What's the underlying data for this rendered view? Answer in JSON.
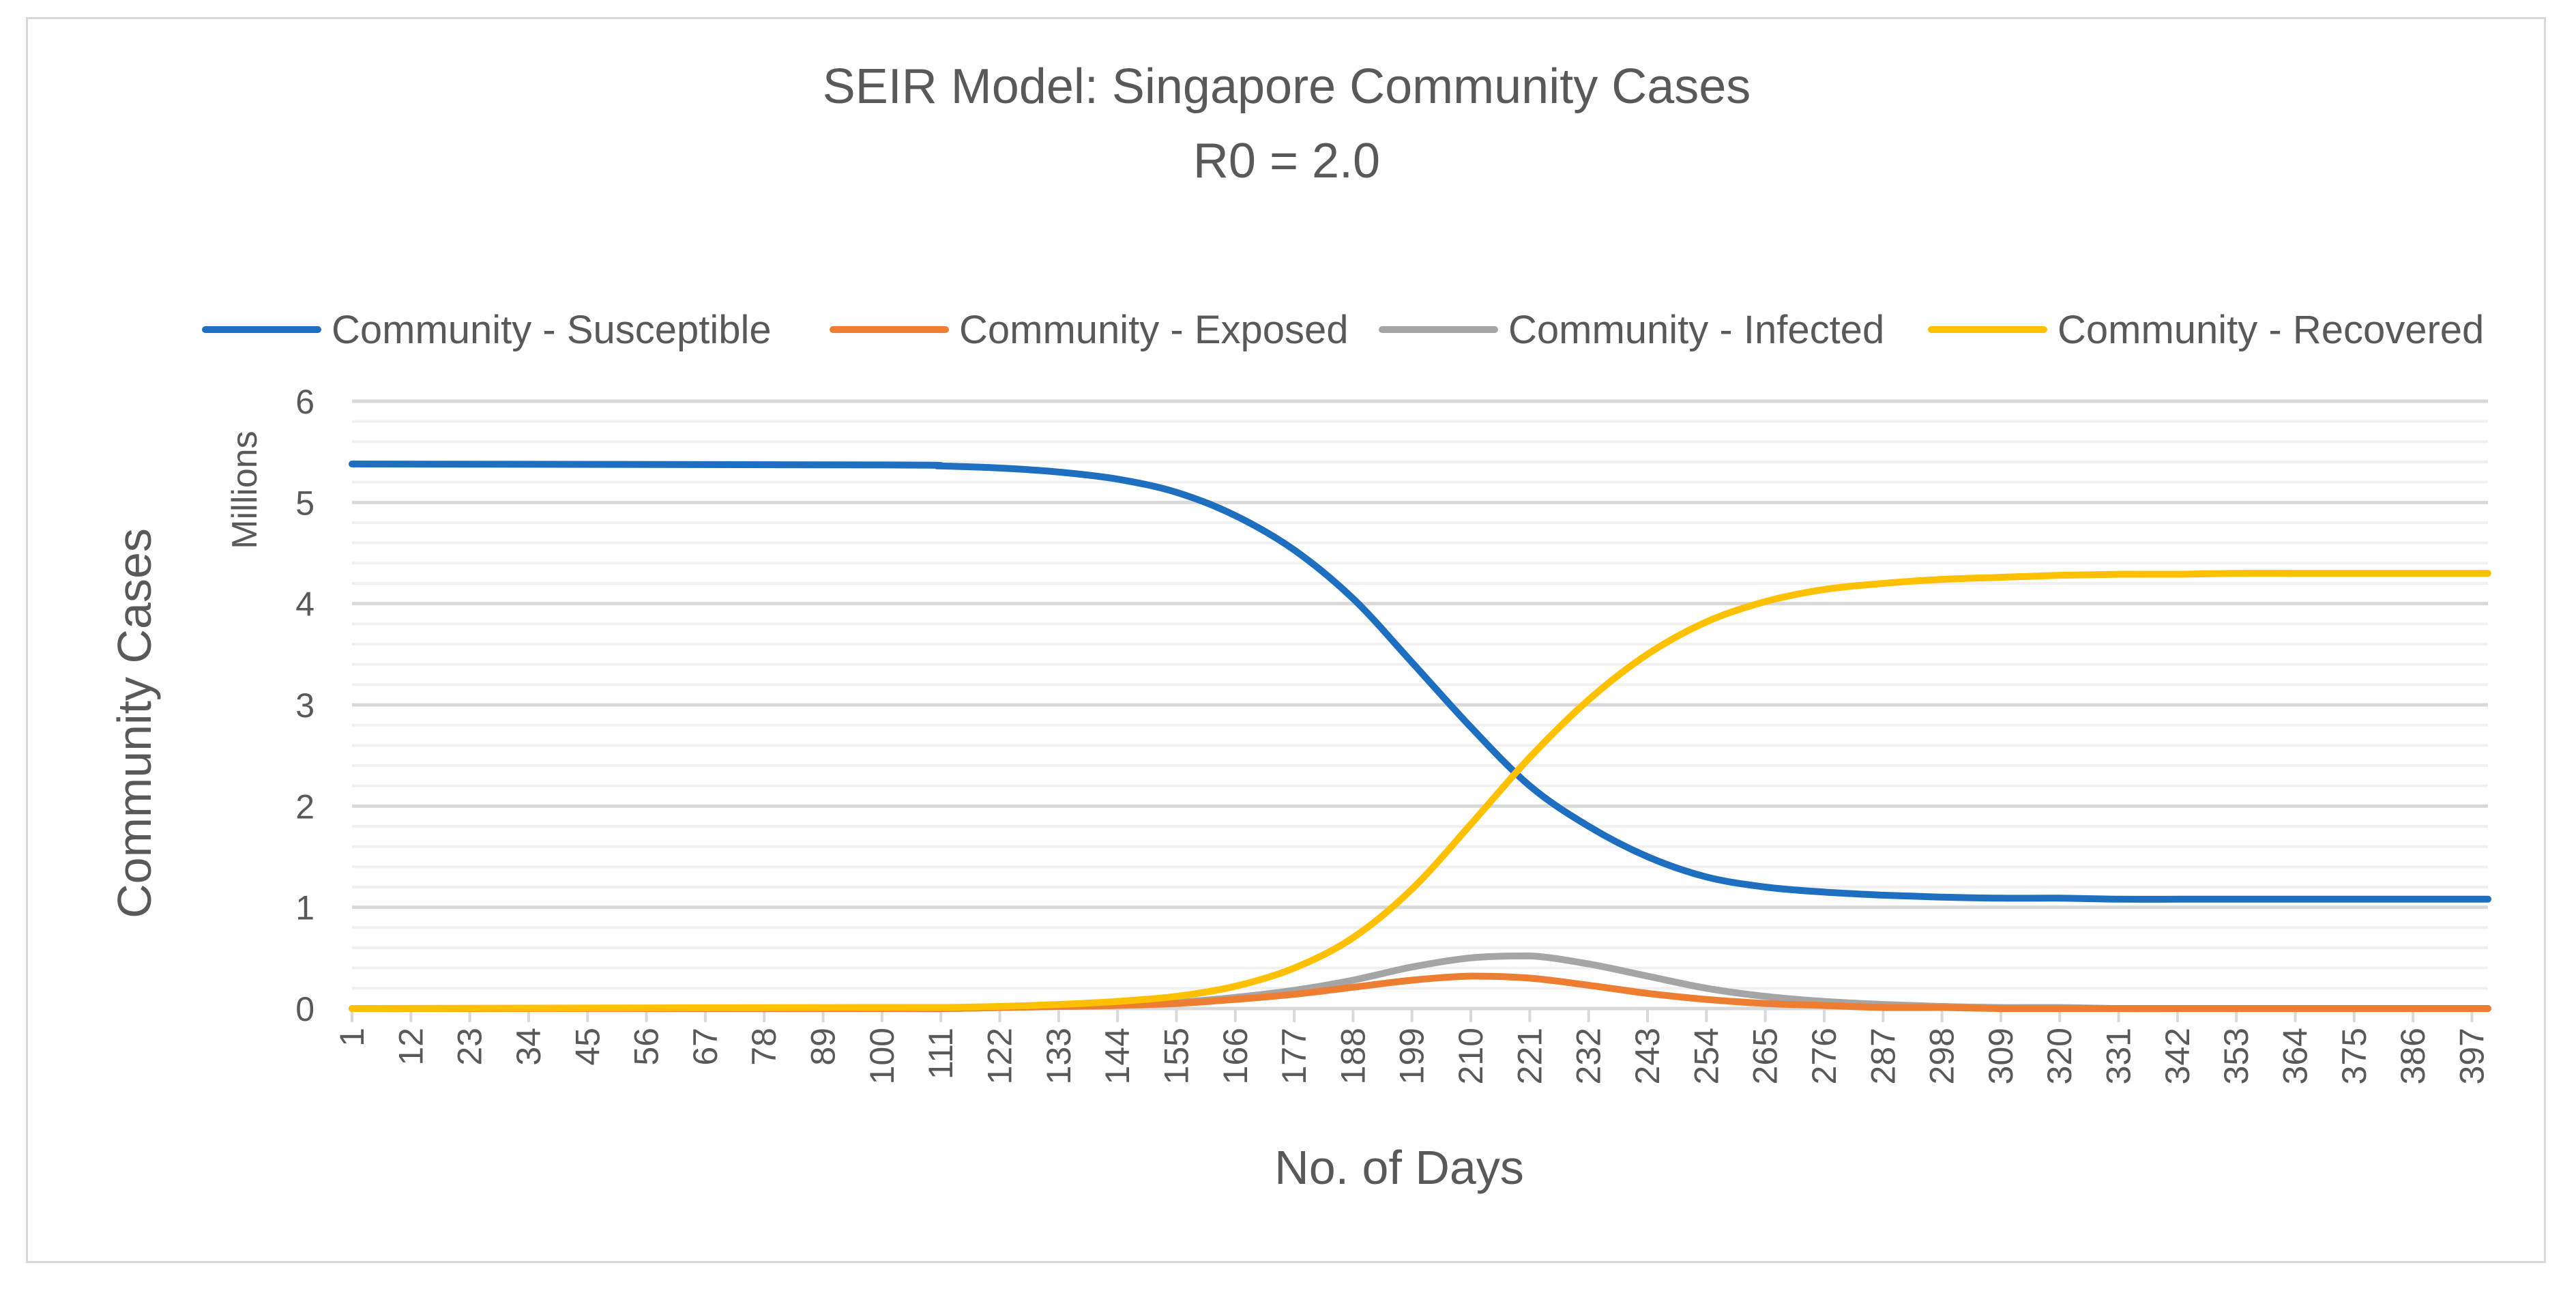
{
  "chart_data": {
    "type": "line",
    "title": "SEIR Model: Singapore Community Cases",
    "subtitle": "R0 = 2.0",
    "xlabel": "No. of Days",
    "ylabel": "Community Cases",
    "y_units_label": "Millions",
    "ylim": [
      0,
      6
    ],
    "y_ticks": [
      "0",
      "1",
      "2",
      "3",
      "4",
      "5",
      "6"
    ],
    "x_range": [
      1,
      400
    ],
    "x_ticks": [
      "1",
      "12",
      "23",
      "34",
      "45",
      "56",
      "67",
      "78",
      "89",
      "100",
      "111",
      "122",
      "133",
      "144",
      "155",
      "166",
      "177",
      "188",
      "199",
      "210",
      "221",
      "232",
      "243",
      "254",
      "265",
      "276",
      "287",
      "298",
      "309",
      "320",
      "331",
      "342",
      "353",
      "364",
      "375",
      "386",
      "397"
    ],
    "legend_position": "top",
    "gridlines": "major and minor horizontal",
    "x": [
      1,
      100,
      111,
      122,
      133,
      144,
      155,
      166,
      177,
      188,
      199,
      210,
      221,
      232,
      243,
      254,
      265,
      276,
      287,
      298,
      309,
      320,
      331,
      342,
      353,
      364,
      375,
      386,
      397,
      400
    ],
    "series": [
      {
        "name": "Community - Susceptible",
        "color": "#1f6fc0",
        "values": [
          5.38,
          5.37,
          5.36,
          5.34,
          5.3,
          5.23,
          5.1,
          4.87,
          4.53,
          4.05,
          3.42,
          2.78,
          2.2,
          1.8,
          1.5,
          1.3,
          1.2,
          1.15,
          1.12,
          1.1,
          1.09,
          1.09,
          1.08,
          1.08,
          1.08,
          1.08,
          1.08,
          1.08,
          1.08,
          1.08
        ]
      },
      {
        "name": "Community - Exposed",
        "color": "#ed7d31",
        "values": [
          0.0,
          0.0,
          0.0,
          0.01,
          0.02,
          0.03,
          0.05,
          0.09,
          0.14,
          0.21,
          0.28,
          0.32,
          0.3,
          0.23,
          0.15,
          0.09,
          0.05,
          0.03,
          0.01,
          0.01,
          0.0,
          0.0,
          0.0,
          0.0,
          0.0,
          0.0,
          0.0,
          0.0,
          0.0,
          0.0
        ]
      },
      {
        "name": "Community - Infected",
        "color": "#a5a5a5",
        "values": [
          0.0,
          0.0,
          0.0,
          0.01,
          0.02,
          0.03,
          0.06,
          0.11,
          0.18,
          0.28,
          0.41,
          0.5,
          0.52,
          0.44,
          0.32,
          0.2,
          0.12,
          0.07,
          0.04,
          0.02,
          0.01,
          0.01,
          0.0,
          0.0,
          0.0,
          0.0,
          0.0,
          0.0,
          0.0,
          0.0
        ]
      },
      {
        "name": "Community - Recovered",
        "color": "#ffc000",
        "values": [
          0.0,
          0.01,
          0.01,
          0.02,
          0.04,
          0.07,
          0.12,
          0.22,
          0.4,
          0.7,
          1.18,
          1.82,
          2.48,
          3.05,
          3.5,
          3.82,
          4.02,
          4.14,
          4.2,
          4.24,
          4.26,
          4.28,
          4.29,
          4.29,
          4.3,
          4.3,
          4.3,
          4.3,
          4.3,
          4.3
        ]
      }
    ]
  }
}
